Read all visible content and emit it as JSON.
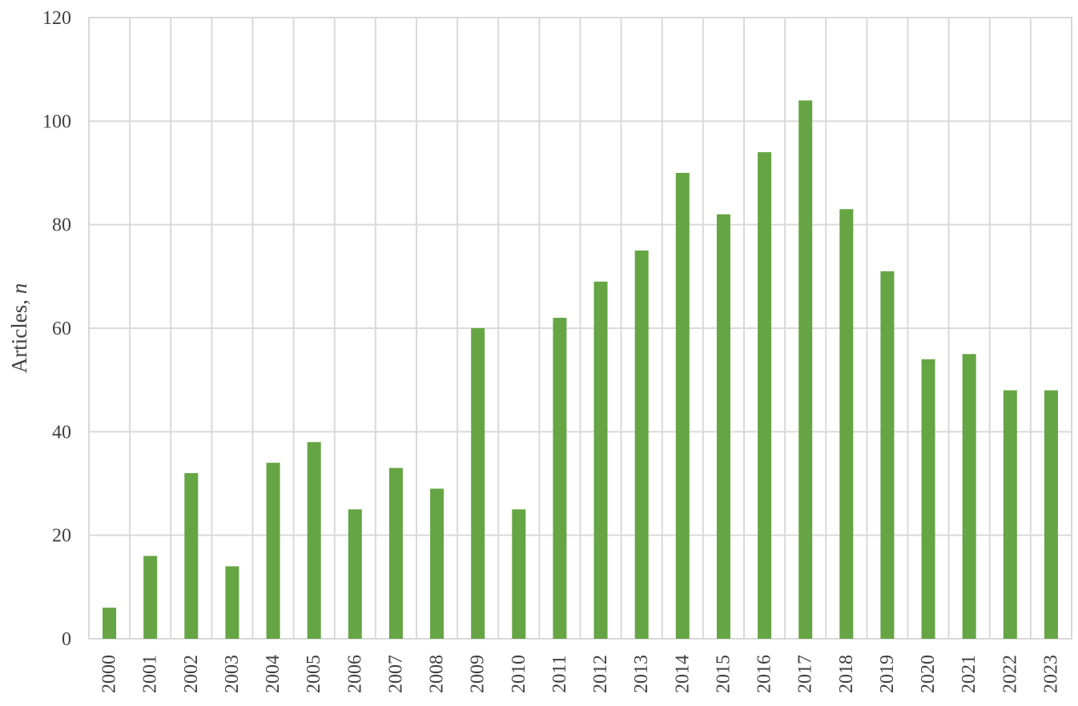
{
  "chart_data": {
    "type": "bar",
    "title": "",
    "xlabel": "",
    "ylabel_main": "Articles, ",
    "ylabel_italic": "n",
    "ylim": [
      0,
      120
    ],
    "yticks": [
      0,
      20,
      40,
      60,
      80,
      100,
      120
    ],
    "grid": true,
    "bar_color": "#65a544",
    "categories": [
      "2000",
      "2001",
      "2002",
      "2003",
      "2004",
      "2005",
      "2006",
      "2007",
      "2008",
      "2009",
      "2010",
      "2011",
      "2012",
      "2013",
      "2014",
      "2015",
      "2016",
      "2017",
      "2018",
      "2019",
      "2020",
      "2021",
      "2022",
      "2023"
    ],
    "values": [
      6,
      16,
      32,
      14,
      34,
      38,
      25,
      33,
      29,
      60,
      25,
      62,
      69,
      75,
      90,
      82,
      94,
      104,
      83,
      71,
      54,
      55,
      48,
      48
    ]
  }
}
